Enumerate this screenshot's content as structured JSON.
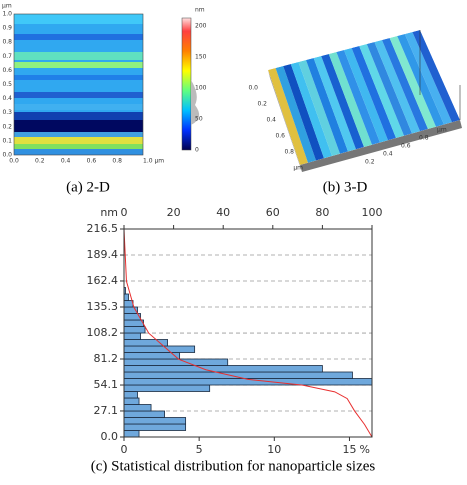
{
  "panels": [
    {
      "caption": "(a) 2-D",
      "unit": "μm",
      "y_ticks": [
        "0.0",
        "0.1",
        "0.2",
        "0.3",
        "0.4",
        "0.5",
        "0.6",
        "0.7",
        "0.8",
        "0.9",
        "1.0"
      ],
      "x_ticks": [
        "0.0",
        "0.2",
        "0.4",
        "0.6",
        "0.8",
        "1.0 μm"
      ],
      "colorbar": {
        "unit": "nm",
        "ticks": [
          "0",
          "50",
          "100",
          "150",
          "200"
        ]
      }
    },
    {
      "caption": "(b) 3-D",
      "left_ticks": [
        "0.0",
        "0.2",
        "0.4",
        "0.6",
        "0.8",
        "μm"
      ],
      "right_ticks": [
        "0.2",
        "0.4",
        "0.6",
        "0.8",
        "μm"
      ]
    }
  ],
  "chart_data": {
    "type": "histogram",
    "caption": "(c) Statistical distribution for nanoparticle sizes",
    "ylabel": "nm",
    "xlabel": "%",
    "bins": [
      0,
      6.765625,
      13.53125,
      20.296875,
      27.0625,
      33.828125,
      40.59375,
      47.359375,
      54.125,
      60.890625,
      67.65625,
      74.421875,
      81.1875,
      87.953125,
      94.71875,
      101.484375,
      108.25,
      115.015625,
      121.78125,
      128.546875,
      135.3125,
      142.078125,
      148.84375,
      155.609375,
      162.375
    ],
    "values": [
      1.0,
      4.1,
      4.1,
      2.7,
      1.8,
      1.0,
      0.9,
      5.7,
      16.5,
      15.2,
      13.2,
      6.9,
      3.7,
      4.7,
      2.9,
      1.1,
      1.4,
      1.3,
      1.1,
      0.9,
      0.6,
      0.3,
      0.1,
      0.0
    ],
    "color": "#6fa8dc",
    "ylim": [
      0,
      216.5
    ],
    "yticks": [
      {
        "value": 0,
        "label": "0.0"
      },
      27.1,
      54.1,
      81.2,
      108.2,
      135.3,
      162.4,
      189.4,
      216.5
    ],
    "xlim": [
      0,
      16.5
    ],
    "xticks": [
      0,
      5,
      10,
      15
    ],
    "x2lim": [
      0,
      100
    ],
    "x2ticks": [
      0,
      20,
      40,
      60,
      80,
      100
    ],
    "grid": true,
    "series": [
      {
        "color": "#e83030",
        "axis": "x2",
        "x": [
          0,
          1,
          4,
          10,
          22,
          33,
          50,
          72,
          85,
          90,
          93,
          97,
          100
        ],
        "y": [
          216.5,
          162,
          135,
          108,
          81,
          70,
          60,
          54,
          47,
          40,
          27,
          13,
          0
        ]
      }
    ]
  }
}
